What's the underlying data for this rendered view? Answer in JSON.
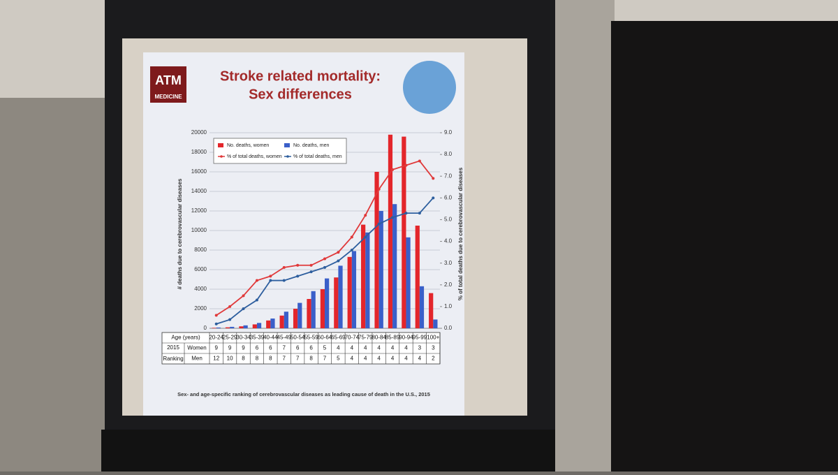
{
  "slide": {
    "logo_mark": "ATM",
    "logo_text": "MEDICINE"
  },
  "chart_data": {
    "type": "bar",
    "title": "Stroke related mortality:",
    "subtitle": "Sex differences",
    "y_label": "# deaths due to cerebrovascular diseases",
    "y2_label": "% of total deaths due to cerebrovascular diseases",
    "caption": "Sex- and age-specific ranking of cerebrovascular diseases as leading cause of death in the U.S., 2015",
    "categories": [
      "20-24",
      "25-29",
      "30-34",
      "35-39",
      "40-44",
      "45-49",
      "50-54",
      "55-59",
      "60-64",
      "65-69",
      "70-74",
      "75-79",
      "80-84",
      "85-89",
      "90-94",
      "95-99",
      "100+"
    ],
    "series": [
      {
        "name": "No. deaths, women",
        "type": "bar",
        "color": "#e3262b",
        "values": [
          50,
          100,
          200,
          400,
          800,
          1300,
          2000,
          3000,
          4000,
          5200,
          7300,
          10600,
          16000,
          19800,
          19600,
          10500,
          3600
        ]
      },
      {
        "name": "No. deaths, men",
        "type": "bar",
        "color": "#3a5fc9",
        "values": [
          80,
          150,
          300,
          550,
          1000,
          1700,
          2600,
          3800,
          5100,
          6400,
          7900,
          9800,
          12000,
          12700,
          9300,
          4300,
          900
        ]
      },
      {
        "name": "% of total deaths, women",
        "type": "line",
        "axis": "y2",
        "color": "#e0393a",
        "values": [
          0.6,
          1.0,
          1.5,
          2.2,
          2.4,
          2.8,
          2.9,
          2.9,
          3.2,
          3.5,
          4.2,
          5.2,
          6.4,
          7.3,
          7.5,
          7.7,
          6.9
        ]
      },
      {
        "name": "% of total deaths, men",
        "type": "line",
        "axis": "y2",
        "color": "#2d5e9e",
        "values": [
          0.2,
          0.4,
          0.9,
          1.3,
          2.2,
          2.2,
          2.4,
          2.6,
          2.8,
          3.1,
          3.6,
          4.2,
          4.8,
          5.1,
          5.3,
          5.3,
          6.0
        ]
      }
    ],
    "ylim": [
      0,
      20000
    ],
    "yticks": [
      0,
      2000,
      4000,
      6000,
      8000,
      10000,
      12000,
      14000,
      16000,
      18000,
      20000
    ],
    "y2lim": [
      0,
      9
    ],
    "y2ticks": [
      {
        "value": 0,
        "label": "0.0"
      },
      {
        "value": 1,
        "label": "1.0"
      },
      {
        "value": 2,
        "label": "2.0"
      },
      {
        "value": 3,
        "label": "3.0"
      },
      {
        "value": 4,
        "label": "4.0"
      },
      {
        "value": 5,
        "label": "5.0"
      },
      {
        "value": 6,
        "label": "6.0"
      },
      {
        "value": 7,
        "label": "7.0"
      },
      {
        "value": 8,
        "label": "8.0"
      },
      {
        "value": 9,
        "label": "9.0"
      }
    ],
    "grid": true,
    "legend": "top-left",
    "table": {
      "header": "Age (years)",
      "year": "2015",
      "label": "Ranking",
      "rows": [
        {
          "name": "Women",
          "values": [
            9,
            9,
            9,
            6,
            6,
            7,
            6,
            6,
            5,
            4,
            4,
            4,
            4,
            4,
            4,
            3,
            3
          ]
        },
        {
          "name": "Men",
          "values": [
            12,
            10,
            8,
            8,
            8,
            7,
            7,
            8,
            7,
            5,
            4,
            4,
            4,
            4,
            4,
            4,
            2
          ]
        }
      ]
    }
  }
}
